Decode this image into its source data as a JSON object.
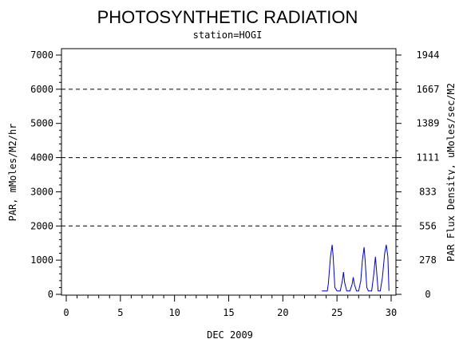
{
  "chart_data": {
    "type": "line",
    "title": "PHOTOSYNTHETIC RADIATION",
    "subtitle": "station=HOGI",
    "xlabel": "DEC 2009",
    "ylabel_left": "PAR, mMoles/M2/hr",
    "ylabel_right": "PAR Flux Density, uMoles/sec/M2",
    "xlim": [
      0,
      30
    ],
    "ylim": [
      0,
      7000
    ],
    "x_ticks": [
      0,
      5,
      10,
      15,
      20,
      25,
      30
    ],
    "y_ticks_left": [
      0,
      1000,
      2000,
      3000,
      4000,
      5000,
      6000,
      7000
    ],
    "y_ticks_right": [
      {
        "label": "0",
        "value": 0
      },
      {
        "label": "278",
        "value": 1000
      },
      {
        "label": "556",
        "value": 2000
      },
      {
        "label": "833",
        "value": 3000
      },
      {
        "label": "1111",
        "value": 4000
      },
      {
        "label": "1389",
        "value": 5000
      },
      {
        "label": "1667",
        "value": 6000
      },
      {
        "label": "1944",
        "value": 7000
      }
    ],
    "gridlines_y": [
      2000,
      4000,
      6000
    ],
    "grid": "dashed horizontal at 2000, 4000, 6000",
    "series": [
      {
        "color": "#0000cc",
        "x": [
          23.6,
          24.1,
          24.2,
          24.4,
          24.55,
          24.65,
          24.8,
          25.0,
          25.3,
          25.5,
          25.6,
          25.7,
          25.9,
          26.2,
          26.4,
          26.5,
          26.6,
          26.8,
          27.0,
          27.2,
          27.35,
          27.5,
          27.6,
          27.75,
          27.9,
          28.2,
          28.4,
          28.55,
          28.65,
          28.8,
          29.0,
          29.2,
          29.4,
          29.55,
          29.7,
          29.8
        ],
        "y": [
          100,
          100,
          300,
          1100,
          1450,
          1100,
          200,
          100,
          100,
          400,
          650,
          350,
          100,
          100,
          300,
          500,
          300,
          100,
          100,
          400,
          1000,
          1380,
          1000,
          200,
          100,
          100,
          600,
          1100,
          700,
          100,
          100,
          500,
          1200,
          1450,
          1100,
          100
        ]
      }
    ]
  }
}
